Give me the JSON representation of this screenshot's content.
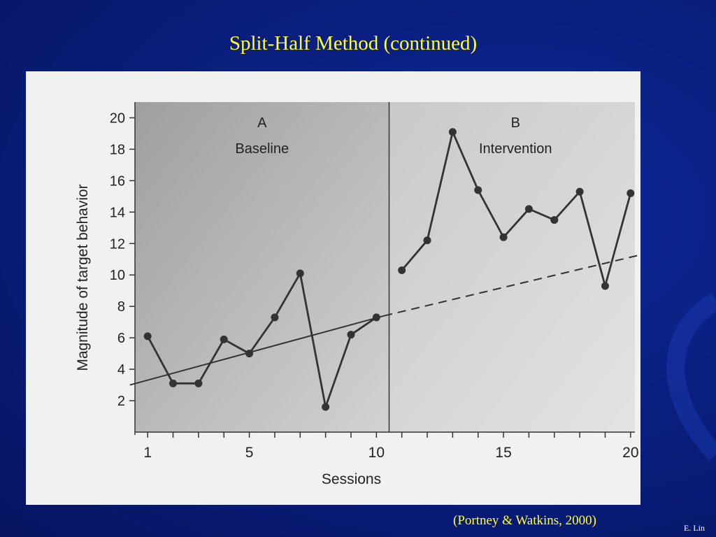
{
  "slide": {
    "title": "Split-Half Method (continued)",
    "citation": "(Portney & Watkins, 2000)",
    "author": "E. Lin",
    "background_color": "#0a1f80",
    "title_color": "#ffff33"
  },
  "chart_data": {
    "type": "line",
    "xlabel": "Sessions",
    "ylabel": "Magnitude of target behavior",
    "xlim": [
      0.5,
      20.5
    ],
    "ylim": [
      0,
      21
    ],
    "x_ticks": [
      1,
      5,
      10,
      15,
      20
    ],
    "y_ticks": [
      2,
      4,
      6,
      8,
      10,
      12,
      14,
      16,
      18,
      20
    ],
    "phase_change_after_session": 10.5,
    "phases": [
      {
        "letter": "A",
        "name": "Baseline"
      },
      {
        "letter": "B",
        "name": "Intervention"
      }
    ],
    "series": [
      {
        "x": [
          1,
          2,
          3,
          4,
          5,
          6,
          7,
          8,
          9,
          10,
          11,
          12,
          13,
          14,
          15,
          16,
          17,
          18,
          19,
          20
        ],
        "values": [
          6.1,
          3.1,
          3.1,
          5.9,
          5.0,
          7.3,
          10.1,
          1.6,
          6.2,
          7.3,
          10.3,
          12.2,
          19.1,
          15.4,
          12.4,
          14.2,
          13.5,
          15.3,
          9.3,
          15.2
        ]
      }
    ],
    "trend_line": {
      "start": [
        0.3,
        3.0
      ],
      "end": [
        10.3,
        7.4
      ],
      "projection_end": [
        20.7,
        11.4
      ],
      "projection_style": "dashed"
    },
    "colors": {
      "line": "#333333",
      "phase_a_fill": "#a8a8a8",
      "phase_b_fill": "#d4d4d4"
    }
  }
}
